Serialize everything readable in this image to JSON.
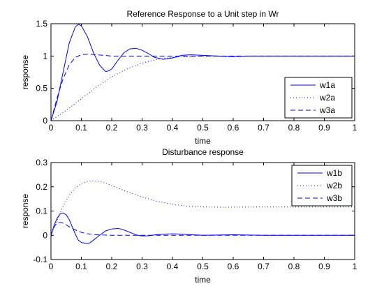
{
  "chart_data": [
    {
      "type": "line",
      "title": "Reference Response to a Unit step in Wr",
      "xlabel": "time",
      "ylabel": "response",
      "xlim": [
        0,
        1
      ],
      "ylim": [
        0,
        1.5
      ],
      "xticks": [
        0,
        0.1,
        0.2,
        0.3,
        0.4,
        0.5,
        0.6,
        0.7,
        0.8,
        0.9,
        1
      ],
      "xtick_labels": [
        "0",
        "0.1",
        "0.2",
        "0.3",
        "0.4",
        "0.5",
        "0.6",
        "0.7",
        "0.8",
        "0.9",
        "1"
      ],
      "yticks": [
        0,
        0.5,
        1,
        1.5
      ],
      "ytick_labels": [
        "0",
        "0.5",
        "1",
        "1.5"
      ],
      "grid": false,
      "legend_position": "bottom-right",
      "color": "#0000ff",
      "series": [
        {
          "name": "w1a",
          "style": "solid",
          "x": [
            0,
            0.02,
            0.04,
            0.06,
            0.08,
            0.09,
            0.1,
            0.12,
            0.14,
            0.16,
            0.18,
            0.19,
            0.2,
            0.22,
            0.24,
            0.26,
            0.28,
            0.3,
            0.32,
            0.34,
            0.37,
            0.4,
            0.43,
            0.46,
            0.5,
            0.55,
            0.6,
            0.65,
            0.7,
            0.8,
            0.9,
            1.0
          ],
          "y": [
            0,
            0.3,
            0.75,
            1.2,
            1.45,
            1.49,
            1.47,
            1.3,
            1.05,
            0.86,
            0.76,
            0.77,
            0.8,
            0.93,
            1.05,
            1.11,
            1.12,
            1.09,
            1.04,
            0.98,
            0.95,
            0.97,
            1.01,
            1.02,
            1.01,
            1.0,
            0.99,
            1.0,
            1.0,
            1.0,
            1.0,
            1.0
          ]
        },
        {
          "name": "w2a",
          "style": "dotted",
          "x": [
            0,
            0.05,
            0.1,
            0.15,
            0.2,
            0.25,
            0.3,
            0.35,
            0.4,
            0.45,
            0.5,
            0.6,
            0.7,
            0.8,
            0.9,
            1.0
          ],
          "y": [
            0,
            0.16,
            0.34,
            0.52,
            0.68,
            0.8,
            0.89,
            0.95,
            0.98,
            0.99,
            1.0,
            1.0,
            1.0,
            1.0,
            1.0,
            1.0
          ]
        },
        {
          "name": "w3a",
          "style": "dashed",
          "x": [
            0,
            0.02,
            0.04,
            0.06,
            0.08,
            0.1,
            0.12,
            0.15,
            0.2,
            0.3,
            0.4,
            0.5,
            0.6,
            0.7,
            0.8,
            0.9,
            1.0
          ],
          "y": [
            0,
            0.35,
            0.65,
            0.86,
            0.98,
            1.02,
            1.03,
            1.02,
            1.0,
            1.0,
            1.0,
            1.0,
            1.0,
            1.0,
            1.0,
            1.0,
            1.0
          ]
        }
      ]
    },
    {
      "type": "line",
      "title": "Disturbance response",
      "xlabel": "time",
      "ylabel": "response",
      "xlim": [
        0,
        1
      ],
      "ylim": [
        -0.1,
        0.3
      ],
      "xticks": [
        0,
        0.1,
        0.2,
        0.3,
        0.4,
        0.5,
        0.6,
        0.7,
        0.8,
        0.9,
        1
      ],
      "xtick_labels": [
        "0",
        "0.1",
        "0.2",
        "0.3",
        "0.4",
        "0.5",
        "0.6",
        "0.7",
        "0.8",
        "0.9",
        "1"
      ],
      "yticks": [
        -0.1,
        0,
        0.1,
        0.2,
        0.3
      ],
      "ytick_labels": [
        "-0.1",
        "0",
        "0.1",
        "0.2",
        "0.3"
      ],
      "grid": false,
      "legend_position": "top-right",
      "color": "#0000ff",
      "series": [
        {
          "name": "w1b",
          "style": "solid",
          "x": [
            0,
            0.01,
            0.02,
            0.03,
            0.04,
            0.05,
            0.06,
            0.07,
            0.08,
            0.09,
            0.1,
            0.12,
            0.13,
            0.14,
            0.16,
            0.18,
            0.2,
            0.22,
            0.23,
            0.24,
            0.26,
            0.28,
            0.3,
            0.32,
            0.35,
            0.4,
            0.5,
            0.6,
            0.7,
            0.8,
            1.0
          ],
          "y": [
            0,
            0.04,
            0.07,
            0.088,
            0.092,
            0.085,
            0.065,
            0.035,
            0.005,
            -0.02,
            -0.03,
            -0.034,
            -0.03,
            -0.02,
            0.0,
            0.018,
            0.026,
            0.028,
            0.026,
            0.022,
            0.012,
            0.002,
            -0.003,
            -0.002,
            0.003,
            0.006,
            0.0,
            0.002,
            0.0,
            0.0,
            0.0
          ]
        },
        {
          "name": "w2b",
          "style": "dotted",
          "x": [
            0,
            0.02,
            0.04,
            0.06,
            0.08,
            0.1,
            0.12,
            0.14,
            0.16,
            0.18,
            0.2,
            0.25,
            0.3,
            0.35,
            0.4,
            0.45,
            0.5,
            0.55,
            0.6,
            0.7,
            0.8,
            0.9,
            1.0
          ],
          "y": [
            0,
            0.06,
            0.12,
            0.165,
            0.195,
            0.213,
            0.222,
            0.225,
            0.222,
            0.215,
            0.205,
            0.18,
            0.158,
            0.14,
            0.128,
            0.12,
            0.117,
            0.116,
            0.116,
            0.117,
            0.117,
            0.117,
            0.117
          ]
        },
        {
          "name": "w3b",
          "style": "dashed",
          "x": [
            0,
            0.01,
            0.02,
            0.03,
            0.04,
            0.05,
            0.06,
            0.08,
            0.1,
            0.12,
            0.15,
            0.2,
            0.3,
            0.4,
            0.5,
            0.6,
            0.7,
            0.8,
            0.9,
            1.0
          ],
          "y": [
            0,
            0.035,
            0.05,
            0.053,
            0.05,
            0.043,
            0.035,
            0.022,
            0.012,
            0.006,
            0.002,
            0.0,
            0.0,
            0.0,
            0.0,
            0.0,
            0.0,
            0.0,
            0.0,
            0.0
          ]
        }
      ]
    }
  ]
}
